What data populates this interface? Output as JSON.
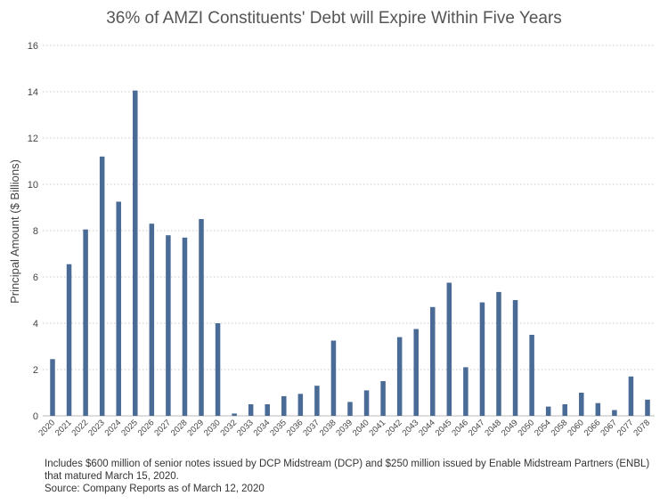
{
  "chart_data": {
    "type": "bar",
    "title": "36% of AMZI Constituents' Debt will Expire Within Five Years",
    "xlabel": "",
    "ylabel": "Principal Amount ($ Billions)",
    "ylim": [
      0,
      16
    ],
    "yticks": [
      0,
      2,
      4,
      6,
      8,
      10,
      12,
      14,
      16
    ],
    "grid": "horizontal-dotted",
    "bar_color": "#4a6b96",
    "categories": [
      "2020",
      "2021",
      "2022",
      "2023",
      "2024",
      "2025",
      "2026",
      "2027",
      "2028",
      "2029",
      "2030",
      "2032",
      "2033",
      "2034",
      "2035",
      "2036",
      "2037",
      "2038",
      "2039",
      "2040",
      "2041",
      "2042",
      "2043",
      "2044",
      "2045",
      "2046",
      "2047",
      "2048",
      "2049",
      "2050",
      "2054",
      "2058",
      "2060",
      "2066",
      "2067",
      "2077",
      "2078"
    ],
    "values": [
      2.45,
      6.55,
      8.05,
      11.2,
      9.25,
      14.05,
      8.3,
      7.8,
      7.7,
      8.5,
      4.0,
      0.1,
      0.5,
      0.5,
      0.85,
      0.95,
      1.3,
      3.25,
      0.6,
      1.1,
      1.5,
      3.4,
      3.75,
      4.7,
      5.75,
      2.1,
      4.9,
      5.35,
      5.0,
      3.5,
      0.4,
      0.5,
      1.0,
      0.55,
      0.25,
      1.7,
      0.7
    ]
  },
  "footnote": {
    "line1": "Includes $600 million of senior notes issued by DCP Midstream (DCP) and $250 million issued by Enable Midstream Partners (ENBL) that matured March 15, 2020.",
    "line2": "Source: Company Reports as of March 12, 2020"
  }
}
